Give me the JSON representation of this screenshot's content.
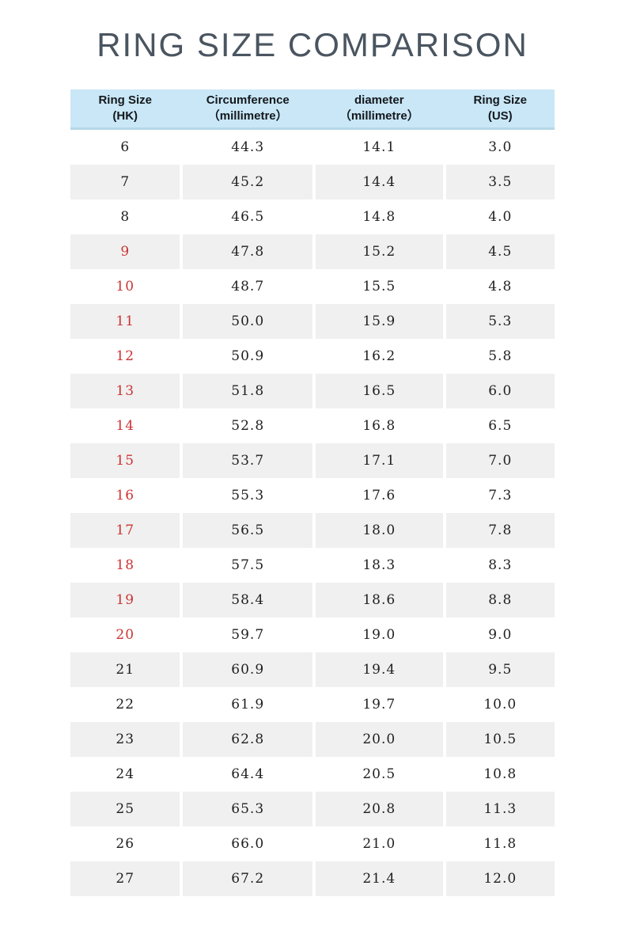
{
  "page_title": "RING SIZE COMPARISON",
  "chart_data": {
    "type": "table",
    "title": "RING SIZE COMPARISON",
    "columns": [
      {
        "line1": "Ring Size",
        "line2": "(HK)",
        "label": "Ring Size (HK)"
      },
      {
        "line1": "Circumference",
        "line2": "（millimetre）",
        "label": "Circumference (millimetre)"
      },
      {
        "line1": "diameter",
        "line2": "（millimetre）",
        "label": "diameter (millimetre)"
      },
      {
        "line1": "Ring Size",
        "line2": "(US)",
        "label": "Ring Size (US)"
      }
    ],
    "rows": [
      {
        "hk": "6",
        "circumference_mm": "44.3",
        "diameter_mm": "14.1",
        "us": "3.0",
        "hk_highlight_red": false
      },
      {
        "hk": "7",
        "circumference_mm": "45.2",
        "diameter_mm": "14.4",
        "us": "3.5",
        "hk_highlight_red": false
      },
      {
        "hk": "8",
        "circumference_mm": "46.5",
        "diameter_mm": "14.8",
        "us": "4.0",
        "hk_highlight_red": false
      },
      {
        "hk": "9",
        "circumference_mm": "47.8",
        "diameter_mm": "15.2",
        "us": "4.5",
        "hk_highlight_red": true
      },
      {
        "hk": "10",
        "circumference_mm": "48.7",
        "diameter_mm": "15.5",
        "us": "4.8",
        "hk_highlight_red": true
      },
      {
        "hk": "11",
        "circumference_mm": "50.0",
        "diameter_mm": "15.9",
        "us": "5.3",
        "hk_highlight_red": true
      },
      {
        "hk": "12",
        "circumference_mm": "50.9",
        "diameter_mm": "16.2",
        "us": "5.8",
        "hk_highlight_red": true
      },
      {
        "hk": "13",
        "circumference_mm": "51.8",
        "diameter_mm": "16.5",
        "us": "6.0",
        "hk_highlight_red": true
      },
      {
        "hk": "14",
        "circumference_mm": "52.8",
        "diameter_mm": "16.8",
        "us": "6.5",
        "hk_highlight_red": true
      },
      {
        "hk": "15",
        "circumference_mm": "53.7",
        "diameter_mm": "17.1",
        "us": "7.0",
        "hk_highlight_red": true
      },
      {
        "hk": "16",
        "circumference_mm": "55.3",
        "diameter_mm": "17.6",
        "us": "7.3",
        "hk_highlight_red": true
      },
      {
        "hk": "17",
        "circumference_mm": "56.5",
        "diameter_mm": "18.0",
        "us": "7.8",
        "hk_highlight_red": true
      },
      {
        "hk": "18",
        "circumference_mm": "57.5",
        "diameter_mm": "18.3",
        "us": "8.3",
        "hk_highlight_red": true
      },
      {
        "hk": "19",
        "circumference_mm": "58.4",
        "diameter_mm": "18.6",
        "us": "8.8",
        "hk_highlight_red": true
      },
      {
        "hk": "20",
        "circumference_mm": "59.7",
        "diameter_mm": "19.0",
        "us": "9.0",
        "hk_highlight_red": true
      },
      {
        "hk": "21",
        "circumference_mm": "60.9",
        "diameter_mm": "19.4",
        "us": "9.5",
        "hk_highlight_red": false
      },
      {
        "hk": "22",
        "circumference_mm": "61.9",
        "diameter_mm": "19.7",
        "us": "10.0",
        "hk_highlight_red": false
      },
      {
        "hk": "23",
        "circumference_mm": "62.8",
        "diameter_mm": "20.0",
        "us": "10.5",
        "hk_highlight_red": false
      },
      {
        "hk": "24",
        "circumference_mm": "64.4",
        "diameter_mm": "20.5",
        "us": "10.8",
        "hk_highlight_red": false
      },
      {
        "hk": "25",
        "circumference_mm": "65.3",
        "diameter_mm": "20.8",
        "us": "11.3",
        "hk_highlight_red": false
      },
      {
        "hk": "26",
        "circumference_mm": "66.0",
        "diameter_mm": "21.0",
        "us": "11.8",
        "hk_highlight_red": false
      },
      {
        "hk": "27",
        "circumference_mm": "67.2",
        "diameter_mm": "21.4",
        "us": "12.0",
        "hk_highlight_red": false
      }
    ],
    "layout_hints": {
      "alternating_row_shading": true,
      "red_hk_range": "9-20"
    }
  },
  "colors": {
    "header_background": "#c9e7f6",
    "header_border_bottom": "#b7d7e7",
    "row_alt_background": "#f0f0f0",
    "highlight_red": "#cc3333",
    "number_text": "#1f1f1f",
    "header_text": "#14181d",
    "title_text": "#4a5560",
    "page_background": "#ffffff"
  }
}
